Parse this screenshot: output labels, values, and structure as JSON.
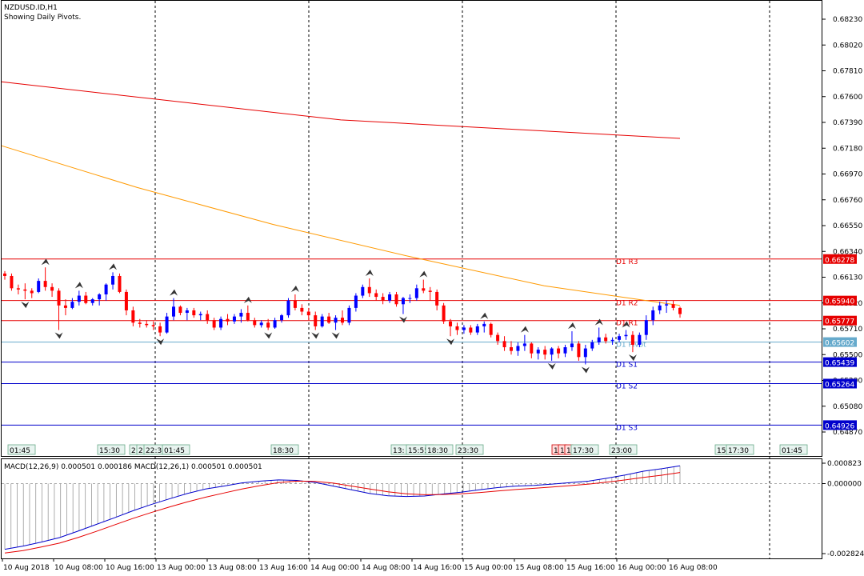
{
  "header": {
    "symbol_line": "NZDUSD.ID,H1",
    "subtitle": "Showing Daily Pivots."
  },
  "colors": {
    "background": "#ffffff",
    "bull": "#0000ff",
    "bear": "#ff0000",
    "ma_slow": "#e60000",
    "ma_fast": "#ff9900",
    "pivot_r": "#e60000",
    "pivot_s": "#0000cc",
    "pivot_p": "#66aacc",
    "macd_line": "#0000cc",
    "signal_line": "#e60000",
    "histogram": "#999999"
  },
  "price_axis": {
    "labels": [
      "0.68230",
      "0.68020",
      "0.67810",
      "0.67600",
      "0.67390",
      "0.67180",
      "0.66970",
      "0.66760",
      "0.66550",
      "0.66340",
      "0.66130",
      "0.65920",
      "0.65710",
      "0.65500",
      "0.65290",
      "0.65080",
      "0.64870"
    ],
    "ylim": [
      0.6472,
      0.6837
    ]
  },
  "pivots": {
    "R3": {
      "label": "D1 R3",
      "value": "0.66278"
    },
    "R2": {
      "label": "D1 R2",
      "value": "0.65940"
    },
    "R1": {
      "label": "D1 R1",
      "value": "0.65777"
    },
    "P": {
      "label": "D1 Pivot",
      "value": "0.65602"
    },
    "S1": {
      "label": "D1 S1",
      "value": "0.65439"
    },
    "S2": {
      "label": "D1 S2",
      "value": "0.65264"
    },
    "S3": {
      "label": "D1 S3",
      "value": "0.64926"
    }
  },
  "session_markers": [
    {
      "label": "01:45"
    },
    {
      "label": "15:30"
    },
    {
      "label": "2"
    },
    {
      "label": "2"
    },
    {
      "label": "22:30"
    },
    {
      "label": "01:45"
    },
    {
      "label": "18:30"
    },
    {
      "label": "13:"
    },
    {
      "label": "15:55"
    },
    {
      "label": "18:30"
    },
    {
      "label": "23:30"
    },
    {
      "label": "1"
    },
    {
      "label": "1"
    },
    {
      "label": "1"
    },
    {
      "label": "17:30"
    },
    {
      "label": "23:00"
    },
    {
      "label": "15:"
    },
    {
      "label": "17:30"
    },
    {
      "label": "01:45"
    }
  ],
  "macd": {
    "title": "MACD(12,26,9) 0.000501 0.000186 MACD(12,26,1) 0.000501 0.000501",
    "axis_labels": [
      "0.000823",
      "0.000000",
      "-0.002824"
    ],
    "ylim": [
      -0.002824,
      0.000823
    ]
  },
  "time_axis": {
    "labels": [
      "10 Aug 2018",
      "10 Aug 08:00",
      "10 Aug 16:00",
      "13 Aug 00:00",
      "13 Aug 08:00",
      "13 Aug 16:00",
      "14 Aug 00:00",
      "14 Aug 08:00",
      "14 Aug 16:00",
      "15 Aug 00:00",
      "15 Aug 08:00",
      "15 Aug 16:00",
      "16 Aug 00:00",
      "16 Aug 08:00"
    ]
  },
  "chart_data": {
    "type": "candlestick",
    "title": "NZDUSD.ID,H1",
    "candles": [
      {
        "o": 0.6616,
        "h": 0.6618,
        "l": 0.6611,
        "c": 0.6614
      },
      {
        "o": 0.6614,
        "h": 0.6616,
        "l": 0.6602,
        "c": 0.6604
      },
      {
        "o": 0.6604,
        "h": 0.6607,
        "l": 0.6599,
        "c": 0.6603
      },
      {
        "o": 0.6603,
        "h": 0.6608,
        "l": 0.6595,
        "c": 0.6602
      },
      {
        "o": 0.6602,
        "h": 0.6604,
        "l": 0.6596,
        "c": 0.66
      },
      {
        "o": 0.6601,
        "h": 0.6612,
        "l": 0.66,
        "c": 0.661
      },
      {
        "o": 0.661,
        "h": 0.6621,
        "l": 0.6602,
        "c": 0.6605
      },
      {
        "o": 0.6605,
        "h": 0.6608,
        "l": 0.6597,
        "c": 0.6602
      },
      {
        "o": 0.6602,
        "h": 0.6604,
        "l": 0.657,
        "c": 0.659
      },
      {
        "o": 0.659,
        "h": 0.6595,
        "l": 0.6582,
        "c": 0.6588
      },
      {
        "o": 0.6588,
        "h": 0.6596,
        "l": 0.6587,
        "c": 0.6593
      },
      {
        "o": 0.6593,
        "h": 0.6602,
        "l": 0.659,
        "c": 0.6598
      },
      {
        "o": 0.6598,
        "h": 0.6601,
        "l": 0.6591,
        "c": 0.6592
      },
      {
        "o": 0.6592,
        "h": 0.6596,
        "l": 0.659,
        "c": 0.6595
      },
      {
        "o": 0.6595,
        "h": 0.66,
        "l": 0.659,
        "c": 0.6599
      },
      {
        "o": 0.6599,
        "h": 0.6608,
        "l": 0.6594,
        "c": 0.6607
      },
      {
        "o": 0.6607,
        "h": 0.6617,
        "l": 0.6603,
        "c": 0.6614
      },
      {
        "o": 0.6614,
        "h": 0.6616,
        "l": 0.66,
        "c": 0.6601
      },
      {
        "o": 0.6601,
        "h": 0.6603,
        "l": 0.6582,
        "c": 0.6586
      },
      {
        "o": 0.6586,
        "h": 0.6589,
        "l": 0.6573,
        "c": 0.6576
      },
      {
        "o": 0.6576,
        "h": 0.6579,
        "l": 0.6572,
        "c": 0.6575
      },
      {
        "o": 0.6575,
        "h": 0.6578,
        "l": 0.6572,
        "c": 0.6574
      },
      {
        "o": 0.6574,
        "h": 0.6577,
        "l": 0.657,
        "c": 0.6573
      },
      {
        "o": 0.6573,
        "h": 0.6576,
        "l": 0.6565,
        "c": 0.6568
      },
      {
        "o": 0.6568,
        "h": 0.6584,
        "l": 0.6567,
        "c": 0.6581
      },
      {
        "o": 0.6581,
        "h": 0.6596,
        "l": 0.6578,
        "c": 0.6589
      },
      {
        "o": 0.6589,
        "h": 0.659,
        "l": 0.6582,
        "c": 0.6584
      },
      {
        "o": 0.6584,
        "h": 0.6588,
        "l": 0.6578,
        "c": 0.6586
      },
      {
        "o": 0.6586,
        "h": 0.6588,
        "l": 0.658,
        "c": 0.6582
      },
      {
        "o": 0.6582,
        "h": 0.6585,
        "l": 0.6578,
        "c": 0.6583
      },
      {
        "o": 0.6583,
        "h": 0.6586,
        "l": 0.6575,
        "c": 0.6578
      },
      {
        "o": 0.6578,
        "h": 0.658,
        "l": 0.657,
        "c": 0.6572
      },
      {
        "o": 0.6572,
        "h": 0.6581,
        "l": 0.657,
        "c": 0.6579
      },
      {
        "o": 0.6579,
        "h": 0.6583,
        "l": 0.6574,
        "c": 0.6577
      },
      {
        "o": 0.6577,
        "h": 0.6583,
        "l": 0.6575,
        "c": 0.6581
      },
      {
        "o": 0.6581,
        "h": 0.6587,
        "l": 0.6576,
        "c": 0.6584
      },
      {
        "o": 0.6584,
        "h": 0.659,
        "l": 0.6577,
        "c": 0.6578
      },
      {
        "o": 0.6578,
        "h": 0.658,
        "l": 0.6572,
        "c": 0.6574
      },
      {
        "o": 0.6574,
        "h": 0.6578,
        "l": 0.6572,
        "c": 0.6576
      },
      {
        "o": 0.6576,
        "h": 0.6579,
        "l": 0.657,
        "c": 0.6572
      },
      {
        "o": 0.6572,
        "h": 0.658,
        "l": 0.6571,
        "c": 0.6578
      },
      {
        "o": 0.6578,
        "h": 0.6583,
        "l": 0.6576,
        "c": 0.6582
      },
      {
        "o": 0.6582,
        "h": 0.6596,
        "l": 0.658,
        "c": 0.6594
      },
      {
        "o": 0.6594,
        "h": 0.6599,
        "l": 0.6586,
        "c": 0.6588
      },
      {
        "o": 0.6588,
        "h": 0.6591,
        "l": 0.6582,
        "c": 0.6585
      },
      {
        "o": 0.6585,
        "h": 0.6588,
        "l": 0.6578,
        "c": 0.6582
      },
      {
        "o": 0.6582,
        "h": 0.6585,
        "l": 0.657,
        "c": 0.6573
      },
      {
        "o": 0.6573,
        "h": 0.6583,
        "l": 0.6572,
        "c": 0.6581
      },
      {
        "o": 0.6581,
        "h": 0.6584,
        "l": 0.6575,
        "c": 0.6576
      },
      {
        "o": 0.6576,
        "h": 0.6582,
        "l": 0.657,
        "c": 0.658
      },
      {
        "o": 0.658,
        "h": 0.6586,
        "l": 0.6574,
        "c": 0.6576
      },
      {
        "o": 0.6576,
        "h": 0.659,
        "l": 0.6574,
        "c": 0.6588
      },
      {
        "o": 0.6588,
        "h": 0.66,
        "l": 0.6585,
        "c": 0.6598
      },
      {
        "o": 0.6598,
        "h": 0.6607,
        "l": 0.6596,
        "c": 0.6605
      },
      {
        "o": 0.6605,
        "h": 0.6612,
        "l": 0.6597,
        "c": 0.66
      },
      {
        "o": 0.66,
        "h": 0.6603,
        "l": 0.6594,
        "c": 0.6597
      },
      {
        "o": 0.6597,
        "h": 0.66,
        "l": 0.6591,
        "c": 0.6594
      },
      {
        "o": 0.6594,
        "h": 0.6601,
        "l": 0.6592,
        "c": 0.6599
      },
      {
        "o": 0.6599,
        "h": 0.6601,
        "l": 0.6589,
        "c": 0.6591
      },
      {
        "o": 0.6591,
        "h": 0.6597,
        "l": 0.6583,
        "c": 0.6596
      },
      {
        "o": 0.6596,
        "h": 0.6599,
        "l": 0.6592,
        "c": 0.6596
      },
      {
        "o": 0.6596,
        "h": 0.6607,
        "l": 0.6594,
        "c": 0.6604
      },
      {
        "o": 0.6604,
        "h": 0.6611,
        "l": 0.66,
        "c": 0.6602
      },
      {
        "o": 0.6602,
        "h": 0.6605,
        "l": 0.6594,
        "c": 0.6601
      },
      {
        "o": 0.6601,
        "h": 0.6603,
        "l": 0.6586,
        "c": 0.659
      },
      {
        "o": 0.659,
        "h": 0.6592,
        "l": 0.6575,
        "c": 0.6577
      },
      {
        "o": 0.6577,
        "h": 0.6579,
        "l": 0.6565,
        "c": 0.6573
      },
      {
        "o": 0.6573,
        "h": 0.6576,
        "l": 0.6566,
        "c": 0.657
      },
      {
        "o": 0.657,
        "h": 0.6574,
        "l": 0.6567,
        "c": 0.6572
      },
      {
        "o": 0.6572,
        "h": 0.6574,
        "l": 0.6566,
        "c": 0.6568
      },
      {
        "o": 0.6568,
        "h": 0.6575,
        "l": 0.6566,
        "c": 0.6573
      },
      {
        "o": 0.6573,
        "h": 0.6577,
        "l": 0.6568,
        "c": 0.6575
      },
      {
        "o": 0.6575,
        "h": 0.6576,
        "l": 0.6564,
        "c": 0.6566
      },
      {
        "o": 0.6566,
        "h": 0.6568,
        "l": 0.6558,
        "c": 0.6561
      },
      {
        "o": 0.6561,
        "h": 0.6565,
        "l": 0.6553,
        "c": 0.6556
      },
      {
        "o": 0.6556,
        "h": 0.6561,
        "l": 0.655,
        "c": 0.6553
      },
      {
        "o": 0.6553,
        "h": 0.656,
        "l": 0.6549,
        "c": 0.6557
      },
      {
        "o": 0.6557,
        "h": 0.6566,
        "l": 0.6553,
        "c": 0.6559
      },
      {
        "o": 0.6559,
        "h": 0.656,
        "l": 0.6547,
        "c": 0.6551
      },
      {
        "o": 0.6551,
        "h": 0.6556,
        "l": 0.6546,
        "c": 0.6554
      },
      {
        "o": 0.6554,
        "h": 0.6557,
        "l": 0.6546,
        "c": 0.655
      },
      {
        "o": 0.655,
        "h": 0.6556,
        "l": 0.6545,
        "c": 0.6555
      },
      {
        "o": 0.6555,
        "h": 0.6557,
        "l": 0.6547,
        "c": 0.6551
      },
      {
        "o": 0.6551,
        "h": 0.6558,
        "l": 0.6548,
        "c": 0.6556
      },
      {
        "o": 0.6556,
        "h": 0.6569,
        "l": 0.6553,
        "c": 0.6559
      },
      {
        "o": 0.6559,
        "h": 0.6561,
        "l": 0.6545,
        "c": 0.6548
      },
      {
        "o": 0.6548,
        "h": 0.6558,
        "l": 0.6542,
        "c": 0.6555
      },
      {
        "o": 0.6555,
        "h": 0.6562,
        "l": 0.6553,
        "c": 0.656
      },
      {
        "o": 0.656,
        "h": 0.6572,
        "l": 0.6558,
        "c": 0.6564
      },
      {
        "o": 0.6564,
        "h": 0.6567,
        "l": 0.6559,
        "c": 0.6561
      },
      {
        "o": 0.6561,
        "h": 0.6564,
        "l": 0.6558,
        "c": 0.6562
      },
      {
        "o": 0.6562,
        "h": 0.6567,
        "l": 0.656,
        "c": 0.6565
      },
      {
        "o": 0.6565,
        "h": 0.657,
        "l": 0.6562,
        "c": 0.6566
      },
      {
        "o": 0.6566,
        "h": 0.6569,
        "l": 0.6552,
        "c": 0.6558
      },
      {
        "o": 0.6558,
        "h": 0.6568,
        "l": 0.6556,
        "c": 0.6566
      },
      {
        "o": 0.6566,
        "h": 0.6582,
        "l": 0.6562,
        "c": 0.6578
      },
      {
        "o": 0.6578,
        "h": 0.6589,
        "l": 0.6574,
        "c": 0.6586
      },
      {
        "o": 0.6586,
        "h": 0.6593,
        "l": 0.6583,
        "c": 0.659
      },
      {
        "o": 0.659,
        "h": 0.6594,
        "l": 0.6584,
        "c": 0.6591
      },
      {
        "o": 0.6591,
        "h": 0.6594,
        "l": 0.6586,
        "c": 0.6588
      },
      {
        "o": 0.6588,
        "h": 0.6589,
        "l": 0.658,
        "c": 0.6583
      }
    ],
    "ma_slow": [
      0.6772,
      0.6741,
      0.6726
    ],
    "ma_fast": [
      0.672,
      0.6686,
      0.6656,
      0.663,
      0.6606,
      0.659
    ],
    "macd_hist": [
      -0.00265,
      -0.00252,
      -0.00236,
      -0.00218,
      -0.00192,
      -0.00165,
      -0.00138,
      -0.0011,
      -0.00085,
      -0.00062,
      -0.0004,
      -0.00022,
      -0.0001,
      3e-05,
      0.0001,
      0.00015,
      0.00013,
      5e-05,
      -0.0001,
      -0.00025,
      -0.0004,
      -0.00049,
      -0.00052,
      -0.0005,
      -0.00042,
      -0.00035,
      -0.00025,
      -0.00016,
      -0.0001,
      -7e-05,
      -2e-05,
      4e-05,
      0.0001,
      0.00022,
      0.00035,
      0.0005,
      0.0006,
      0.00072
    ],
    "macd_signal": [
      -0.0028,
      -0.0027,
      -0.00256,
      -0.0024,
      -0.00218,
      -0.00193,
      -0.00167,
      -0.00141,
      -0.00117,
      -0.00095,
      -0.00074,
      -0.00055,
      -0.00038,
      -0.00022,
      -8e-05,
      4e-05,
      0.0001,
      9e-05,
      2e-05,
      -0.0001,
      -0.00022,
      -0.00033,
      -0.00041,
      -0.00045,
      -0.00044,
      -0.00041,
      -0.00036,
      -0.0003,
      -0.00024,
      -0.00019,
      -0.00014,
      -8e-05,
      -2e-05,
      6e-05,
      0.00015,
      0.00025,
      0.00034,
      0.00045
    ]
  }
}
